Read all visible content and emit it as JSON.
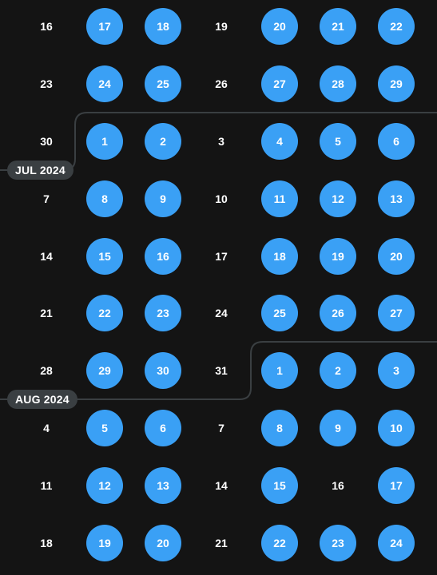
{
  "colors": {
    "background": "#141414",
    "selected_day": "#3aa0f5",
    "month_label_bg": "#3a3f42",
    "divider_line": "#3a3f42",
    "text": "#ffffff"
  },
  "months": [
    {
      "label": "JUL 2024"
    },
    {
      "label": "AUG 2024"
    }
  ],
  "weeks": [
    {
      "days": [
        {
          "label": "16",
          "selected": false
        },
        {
          "label": "17",
          "selected": true
        },
        {
          "label": "18",
          "selected": true
        },
        {
          "label": "19",
          "selected": false
        },
        {
          "label": "20",
          "selected": true
        },
        {
          "label": "21",
          "selected": true
        },
        {
          "label": "22",
          "selected": true
        }
      ]
    },
    {
      "days": [
        {
          "label": "23",
          "selected": false
        },
        {
          "label": "24",
          "selected": true
        },
        {
          "label": "25",
          "selected": true
        },
        {
          "label": "26",
          "selected": false
        },
        {
          "label": "27",
          "selected": true
        },
        {
          "label": "28",
          "selected": true
        },
        {
          "label": "29",
          "selected": true
        }
      ]
    },
    {
      "days": [
        {
          "label": "30",
          "selected": false
        },
        {
          "label": "1",
          "selected": true
        },
        {
          "label": "2",
          "selected": true
        },
        {
          "label": "3",
          "selected": false
        },
        {
          "label": "4",
          "selected": true
        },
        {
          "label": "5",
          "selected": true
        },
        {
          "label": "6",
          "selected": true
        }
      ]
    },
    {
      "days": [
        {
          "label": "7",
          "selected": false
        },
        {
          "label": "8",
          "selected": true
        },
        {
          "label": "9",
          "selected": true
        },
        {
          "label": "10",
          "selected": false
        },
        {
          "label": "11",
          "selected": true
        },
        {
          "label": "12",
          "selected": true
        },
        {
          "label": "13",
          "selected": true
        }
      ]
    },
    {
      "days": [
        {
          "label": "14",
          "selected": false
        },
        {
          "label": "15",
          "selected": true
        },
        {
          "label": "16",
          "selected": true
        },
        {
          "label": "17",
          "selected": false
        },
        {
          "label": "18",
          "selected": true
        },
        {
          "label": "19",
          "selected": true
        },
        {
          "label": "20",
          "selected": true
        }
      ]
    },
    {
      "days": [
        {
          "label": "21",
          "selected": false
        },
        {
          "label": "22",
          "selected": true
        },
        {
          "label": "23",
          "selected": true
        },
        {
          "label": "24",
          "selected": false
        },
        {
          "label": "25",
          "selected": true
        },
        {
          "label": "26",
          "selected": true
        },
        {
          "label": "27",
          "selected": true
        }
      ]
    },
    {
      "days": [
        {
          "label": "28",
          "selected": false
        },
        {
          "label": "29",
          "selected": true
        },
        {
          "label": "30",
          "selected": true
        },
        {
          "label": "31",
          "selected": false
        },
        {
          "label": "1",
          "selected": true
        },
        {
          "label": "2",
          "selected": true
        },
        {
          "label": "3",
          "selected": true
        }
      ]
    },
    {
      "days": [
        {
          "label": "4",
          "selected": false
        },
        {
          "label": "5",
          "selected": true
        },
        {
          "label": "6",
          "selected": true
        },
        {
          "label": "7",
          "selected": false
        },
        {
          "label": "8",
          "selected": true
        },
        {
          "label": "9",
          "selected": true
        },
        {
          "label": "10",
          "selected": true
        }
      ]
    },
    {
      "days": [
        {
          "label": "11",
          "selected": false
        },
        {
          "label": "12",
          "selected": true
        },
        {
          "label": "13",
          "selected": true
        },
        {
          "label": "14",
          "selected": false
        },
        {
          "label": "15",
          "selected": true
        },
        {
          "label": "16",
          "selected": false
        },
        {
          "label": "17",
          "selected": true
        }
      ]
    },
    {
      "days": [
        {
          "label": "18",
          "selected": false
        },
        {
          "label": "19",
          "selected": true
        },
        {
          "label": "20",
          "selected": true
        },
        {
          "label": "21",
          "selected": false
        },
        {
          "label": "22",
          "selected": true
        },
        {
          "label": "23",
          "selected": true
        },
        {
          "label": "24",
          "selected": true
        }
      ]
    }
  ]
}
